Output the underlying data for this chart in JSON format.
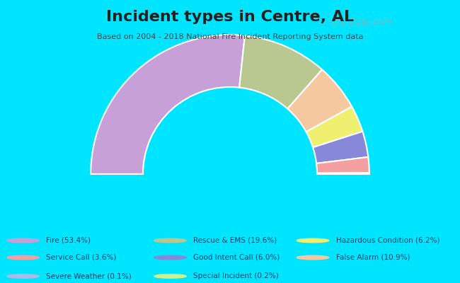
{
  "title": "Incident types in Centre, AL",
  "subtitle": "Based on 2004 - 2018 National Fire Incident Reporting System data",
  "background_outer": "#00e5ff",
  "background_inner": "#e8f5e0",
  "watermark": "City-Data.com",
  "segments": [
    {
      "label": "Fire",
      "pct": 53.4,
      "color": "#c8a0d8"
    },
    {
      "label": "Rescue & EMS",
      "pct": 19.6,
      "color": "#b8c890"
    },
    {
      "label": "False Alarm",
      "pct": 10.9,
      "color": "#f5c8a0"
    },
    {
      "label": "Hazardous Condition",
      "pct": 6.2,
      "color": "#f0f070"
    },
    {
      "label": "Good Intent Call",
      "pct": 6.0,
      "color": "#8888d8"
    },
    {
      "label": "Service Call",
      "pct": 3.6,
      "color": "#f5a0a0"
    },
    {
      "label": "Special Incident",
      "pct": 0.2,
      "color": "#d0f090"
    },
    {
      "label": "Severe Weather",
      "pct": 0.1,
      "color": "#b0b8e8"
    }
  ],
  "legend_order": [
    {
      "label": "Fire (53.4%)",
      "color": "#c8a0d8"
    },
    {
      "label": "Service Call (3.6%)",
      "color": "#f5a0a0"
    },
    {
      "label": "Severe Weather (0.1%)",
      "color": "#b0b8e8"
    },
    {
      "label": "Rescue & EMS (19.6%)",
      "color": "#b8c890"
    },
    {
      "label": "Good Intent Call (6.0%)",
      "color": "#8888d8"
    },
    {
      "label": "Special Incident (0.2%)",
      "color": "#d0f090"
    },
    {
      "label": "Hazardous Condition (6.2%)",
      "color": "#f0f070"
    },
    {
      "label": "False Alarm (10.9%)",
      "color": "#f5c8a0"
    }
  ]
}
